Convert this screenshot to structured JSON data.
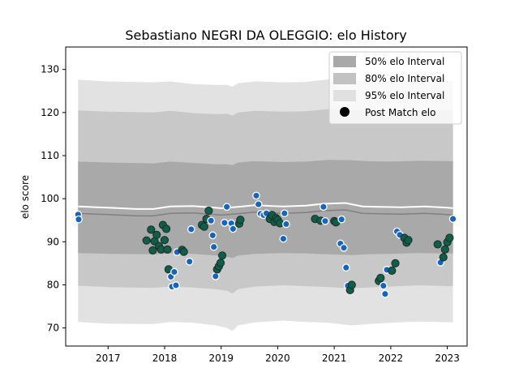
{
  "chart_data": {
    "type": "scatter",
    "title": "Sebastiano NEGRI DA OLEGGIO: elo History",
    "xlabel": "",
    "ylabel": "elo score",
    "xlim": [
      2016.25,
      2023.35
    ],
    "ylim": [
      65.8,
      135.2
    ],
    "xticks": [
      2017,
      2018,
      2019,
      2020,
      2021,
      2022,
      2023
    ],
    "xtick_labels": [
      "2017",
      "2018",
      "2019",
      "2020",
      "2021",
      "2022",
      "2023"
    ],
    "yticks": [
      70,
      80,
      90,
      100,
      110,
      120,
      130
    ],
    "ytick_labels": [
      "70",
      "80",
      "90",
      "100",
      "110",
      "120",
      "130"
    ],
    "grid": false,
    "legend": {
      "position": "top-right",
      "entries": [
        {
          "label": "50% elo Interval",
          "kind": "band",
          "color": "#a9a9a9"
        },
        {
          "label": "80% elo Interval",
          "kind": "band",
          "color": "#c2c2c2"
        },
        {
          "label": "95% elo Interval",
          "kind": "band",
          "color": "#e0e0e0"
        },
        {
          "label": "Post Match elo",
          "kind": "marker",
          "color": "#000000"
        }
      ]
    },
    "colors": {
      "band50": "#a9a9a9",
      "band80": "#c8c8c8",
      "band95": "#e2e2e2",
      "mean_line": "#808080",
      "white_line": "#ffffff",
      "point_green": "#0e5e4a",
      "point_blue": "#1565c0"
    },
    "mean_line": {
      "x": [
        2016.47,
        2017.0,
        2017.5,
        2017.8,
        2018.1,
        2018.5,
        2018.8,
        2019.0,
        2019.3,
        2019.6,
        2019.9,
        2020.1,
        2020.5,
        2020.8,
        2021.0,
        2021.2,
        2021.5,
        2021.8,
        2022.2,
        2022.6,
        2023.0,
        2023.1
      ],
      "y": [
        96.6,
        96.3,
        96.0,
        96.0,
        96.6,
        96.7,
        96.4,
        96.2,
        96.5,
        96.9,
        96.7,
        96.6,
        96.8,
        97.2,
        97.3,
        97.4,
        96.6,
        96.5,
        96.4,
        96.6,
        96.3,
        96.2
      ]
    },
    "upper_line": {
      "x": [
        2016.47,
        2017.0,
        2017.5,
        2017.8,
        2018.1,
        2018.5,
        2018.8,
        2019.0,
        2019.3,
        2019.6,
        2019.9,
        2020.1,
        2020.5,
        2020.8,
        2021.0,
        2021.2,
        2021.5,
        2021.8,
        2022.2,
        2022.6,
        2023.0,
        2023.1
      ],
      "y": [
        98.2,
        97.9,
        97.6,
        97.6,
        98.2,
        98.3,
        98.0,
        97.8,
        98.1,
        98.5,
        98.3,
        98.2,
        98.4,
        98.8,
        98.9,
        99.0,
        98.2,
        98.1,
        98.0,
        98.2,
        97.9,
        97.8
      ]
    },
    "bands": [
      {
        "name": "95% elo Interval",
        "x": [
          2016.47,
          2017.0,
          2017.8,
          2018.1,
          2018.5,
          2018.9,
          2019.1,
          2019.2,
          2019.3,
          2019.6,
          2020.1,
          2020.5,
          2020.9,
          2021.3,
          2021.6,
          2022.0,
          2022.5,
          2023.1
        ],
        "lower": [
          71.4,
          71.0,
          70.9,
          71.4,
          71.2,
          70.6,
          70.0,
          69.3,
          70.6,
          71.3,
          71.7,
          71.4,
          71.2,
          70.6,
          70.9,
          71.2,
          71.5,
          71.3
        ],
        "upper": [
          127.6,
          127.2,
          127.0,
          127.2,
          126.6,
          126.4,
          126.4,
          126.0,
          126.8,
          127.2,
          127.0,
          127.1,
          127.7,
          127.6,
          127.2,
          127.1,
          127.4,
          127.3
        ]
      },
      {
        "name": "80% elo Interval",
        "x": [
          2016.47,
          2017.0,
          2017.8,
          2018.1,
          2018.5,
          2018.9,
          2019.1,
          2019.2,
          2019.3,
          2019.6,
          2020.1,
          2020.5,
          2020.9,
          2021.3,
          2021.6,
          2022.0,
          2022.5,
          2023.1
        ],
        "lower": [
          79.8,
          79.5,
          79.3,
          79.6,
          79.4,
          79.0,
          78.6,
          78.0,
          79.0,
          79.6,
          79.9,
          79.7,
          79.5,
          79.2,
          79.4,
          79.6,
          79.9,
          79.7
        ],
        "upper": [
          120.5,
          120.2,
          120.0,
          120.4,
          119.9,
          119.6,
          119.7,
          119.3,
          120.0,
          120.4,
          120.2,
          120.3,
          120.8,
          120.7,
          120.4,
          120.3,
          120.6,
          120.5
        ]
      },
      {
        "name": "50% elo Interval",
        "x": [
          2016.47,
          2017.0,
          2017.8,
          2018.1,
          2018.5,
          2018.9,
          2019.1,
          2019.2,
          2019.3,
          2019.6,
          2020.1,
          2020.5,
          2020.9,
          2021.3,
          2021.6,
          2022.0,
          2022.5,
          2023.1
        ],
        "lower": [
          87.4,
          87.2,
          87.1,
          87.3,
          87.2,
          86.8,
          86.5,
          86.2,
          86.8,
          87.2,
          87.4,
          87.3,
          87.1,
          86.9,
          87.1,
          87.2,
          87.4,
          87.3
        ],
        "upper": [
          108.6,
          108.4,
          108.2,
          108.6,
          108.3,
          108.0,
          108.0,
          107.8,
          108.4,
          108.7,
          108.5,
          108.6,
          109.0,
          108.9,
          108.7,
          108.6,
          108.8,
          108.7
        ]
      }
    ],
    "series": [
      {
        "name": "Post Match elo",
        "points": [
          {
            "x": 2016.47,
            "y": 96.3,
            "c": "blue"
          },
          {
            "x": 2016.48,
            "y": 95.2,
            "c": "blue"
          },
          {
            "x": 2017.68,
            "y": 90.3,
            "c": "green"
          },
          {
            "x": 2017.76,
            "y": 92.8,
            "c": "green"
          },
          {
            "x": 2017.79,
            "y": 88.0,
            "c": "green"
          },
          {
            "x": 2017.82,
            "y": 90.1,
            "c": "green"
          },
          {
            "x": 2017.86,
            "y": 91.6,
            "c": "green"
          },
          {
            "x": 2017.9,
            "y": 89.0,
            "c": "green"
          },
          {
            "x": 2017.94,
            "y": 88.2,
            "c": "green"
          },
          {
            "x": 2017.97,
            "y": 93.9,
            "c": "green"
          },
          {
            "x": 2018.0,
            "y": 90.4,
            "c": "green"
          },
          {
            "x": 2018.03,
            "y": 93.0,
            "c": "green"
          },
          {
            "x": 2018.05,
            "y": 88.2,
            "c": "green"
          },
          {
            "x": 2018.07,
            "y": 83.6,
            "c": "green"
          },
          {
            "x": 2018.11,
            "y": 81.9,
            "c": "blue"
          },
          {
            "x": 2018.13,
            "y": 79.6,
            "c": "blue"
          },
          {
            "x": 2018.17,
            "y": 83.0,
            "c": "blue"
          },
          {
            "x": 2018.2,
            "y": 79.9,
            "c": "blue"
          },
          {
            "x": 2018.22,
            "y": 87.6,
            "c": "blue"
          },
          {
            "x": 2018.31,
            "y": 88.1,
            "c": "green"
          },
          {
            "x": 2018.34,
            "y": 87.7,
            "c": "green"
          },
          {
            "x": 2018.44,
            "y": 85.4,
            "c": "blue"
          },
          {
            "x": 2018.47,
            "y": 92.9,
            "c": "blue"
          },
          {
            "x": 2018.66,
            "y": 93.9,
            "c": "green"
          },
          {
            "x": 2018.7,
            "y": 93.5,
            "c": "green"
          },
          {
            "x": 2018.74,
            "y": 95.3,
            "c": "green"
          },
          {
            "x": 2018.78,
            "y": 97.2,
            "c": "green"
          },
          {
            "x": 2018.82,
            "y": 94.9,
            "c": "blue"
          },
          {
            "x": 2018.85,
            "y": 91.5,
            "c": "blue"
          },
          {
            "x": 2018.87,
            "y": 88.8,
            "c": "blue"
          },
          {
            "x": 2018.9,
            "y": 82.0,
            "c": "blue"
          },
          {
            "x": 2018.93,
            "y": 83.6,
            "c": "green"
          },
          {
            "x": 2018.96,
            "y": 84.3,
            "c": "green"
          },
          {
            "x": 2018.99,
            "y": 85.1,
            "c": "green"
          },
          {
            "x": 2019.02,
            "y": 86.8,
            "c": "green"
          },
          {
            "x": 2019.06,
            "y": 94.4,
            "c": "blue"
          },
          {
            "x": 2019.1,
            "y": 98.1,
            "c": "blue"
          },
          {
            "x": 2019.18,
            "y": 94.3,
            "c": "blue"
          },
          {
            "x": 2019.21,
            "y": 93.0,
            "c": "blue"
          },
          {
            "x": 2019.32,
            "y": 94.2,
            "c": "green"
          },
          {
            "x": 2019.34,
            "y": 95.1,
            "c": "green"
          },
          {
            "x": 2019.62,
            "y": 100.7,
            "c": "blue"
          },
          {
            "x": 2019.66,
            "y": 98.7,
            "c": "blue"
          },
          {
            "x": 2019.7,
            "y": 96.5,
            "c": "blue"
          },
          {
            "x": 2019.75,
            "y": 96.2,
            "c": "blue"
          },
          {
            "x": 2019.8,
            "y": 96.6,
            "c": "blue"
          },
          {
            "x": 2019.86,
            "y": 95.3,
            "c": "green"
          },
          {
            "x": 2019.9,
            "y": 96.2,
            "c": "green"
          },
          {
            "x": 2019.94,
            "y": 94.6,
            "c": "green"
          },
          {
            "x": 2019.97,
            "y": 95.5,
            "c": "green"
          },
          {
            "x": 2020.0,
            "y": 95.1,
            "c": "green"
          },
          {
            "x": 2020.04,
            "y": 94.3,
            "c": "green"
          },
          {
            "x": 2020.1,
            "y": 90.7,
            "c": "blue"
          },
          {
            "x": 2020.12,
            "y": 96.6,
            "c": "blue"
          },
          {
            "x": 2020.15,
            "y": 94.1,
            "c": "blue"
          },
          {
            "x": 2020.66,
            "y": 95.3,
            "c": "green"
          },
          {
            "x": 2020.76,
            "y": 94.9,
            "c": "green"
          },
          {
            "x": 2020.81,
            "y": 98.1,
            "c": "blue"
          },
          {
            "x": 2020.84,
            "y": 94.8,
            "c": "blue"
          },
          {
            "x": 2021.0,
            "y": 94.8,
            "c": "green"
          },
          {
            "x": 2021.03,
            "y": 94.5,
            "c": "green"
          },
          {
            "x": 2021.11,
            "y": 89.6,
            "c": "blue"
          },
          {
            "x": 2021.13,
            "y": 95.2,
            "c": "blue"
          },
          {
            "x": 2021.17,
            "y": 88.6,
            "c": "blue"
          },
          {
            "x": 2021.21,
            "y": 84.0,
            "c": "blue"
          },
          {
            "x": 2021.24,
            "y": 79.8,
            "c": "blue"
          },
          {
            "x": 2021.28,
            "y": 78.8,
            "c": "green"
          },
          {
            "x": 2021.31,
            "y": 80.0,
            "c": "green"
          },
          {
            "x": 2021.79,
            "y": 80.9,
            "c": "green"
          },
          {
            "x": 2021.82,
            "y": 81.6,
            "c": "green"
          },
          {
            "x": 2021.87,
            "y": 79.8,
            "c": "blue"
          },
          {
            "x": 2021.9,
            "y": 77.9,
            "c": "blue"
          },
          {
            "x": 2021.93,
            "y": 83.5,
            "c": "blue"
          },
          {
            "x": 2022.02,
            "y": 83.3,
            "c": "green"
          },
          {
            "x": 2022.08,
            "y": 85.0,
            "c": "green"
          },
          {
            "x": 2022.11,
            "y": 92.4,
            "c": "blue"
          },
          {
            "x": 2022.16,
            "y": 91.6,
            "c": "blue"
          },
          {
            "x": 2022.24,
            "y": 90.9,
            "c": "green"
          },
          {
            "x": 2022.28,
            "y": 89.8,
            "c": "green"
          },
          {
            "x": 2022.31,
            "y": 90.4,
            "c": "green"
          },
          {
            "x": 2022.83,
            "y": 89.4,
            "c": "green"
          },
          {
            "x": 2022.88,
            "y": 85.2,
            "c": "blue"
          },
          {
            "x": 2022.93,
            "y": 86.4,
            "c": "green"
          },
          {
            "x": 2022.96,
            "y": 88.2,
            "c": "green"
          },
          {
            "x": 2023.0,
            "y": 89.9,
            "c": "green"
          },
          {
            "x": 2023.04,
            "y": 90.9,
            "c": "green"
          },
          {
            "x": 2023.1,
            "y": 95.3,
            "c": "blue"
          }
        ]
      }
    ]
  }
}
